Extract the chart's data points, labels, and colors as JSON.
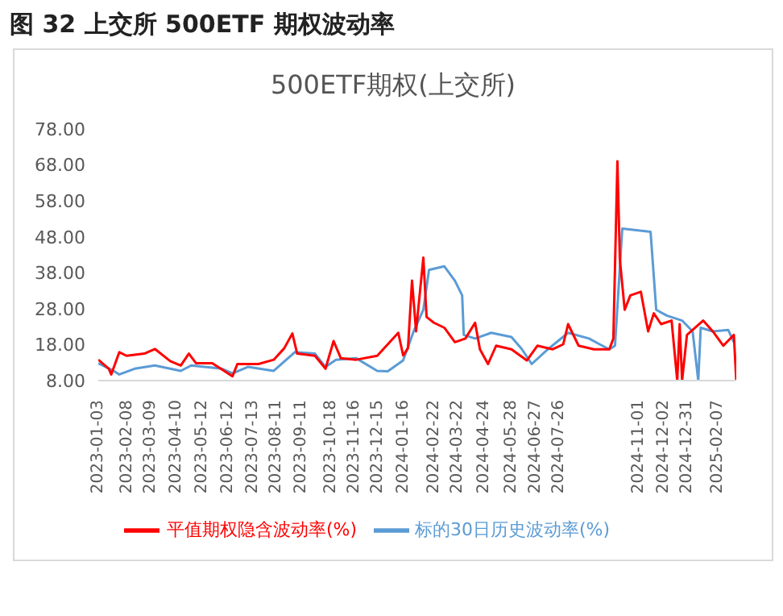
{
  "chart_data": {
    "type": "line",
    "title": "图 32  上交所 500ETF 期权波动率",
    "subtitle": "500ETF期权(上交所)",
    "xlim": [
      "2023-01-03",
      "2025-03-02"
    ],
    "xticks": [
      "2023-01-03",
      "2023-02-08",
      "2023-03-09",
      "2023-04-10",
      "2023-05-12",
      "2023-06-12",
      "2023-07-13",
      "2023-08-11",
      "2023-09-11",
      "2023-10-18",
      "2023-11-16",
      "2023-12-15",
      "2024-01-16",
      "2024-02-22",
      "2024-03-22",
      "2024-04-24",
      "2024-05-28",
      "2024-06-27",
      "2024-07-26",
      "2024-11-01",
      "2024-12-02",
      "2024-12-31",
      "2025-02-07"
    ],
    "ylim": [
      8,
      78
    ],
    "yticks": [
      {
        "value": 8,
        "label": "8.00"
      },
      {
        "value": 18,
        "label": "18.00"
      },
      {
        "value": 28,
        "label": "28.00"
      },
      {
        "value": 38,
        "label": "38.00"
      },
      {
        "value": 48,
        "label": "48.00"
      },
      {
        "value": 58,
        "label": "58.00"
      },
      {
        "value": 68,
        "label": "68.00"
      },
      {
        "value": 78,
        "label": "78.00"
      }
    ],
    "legend": "bottom",
    "series": [
      {
        "name": "标的30日历史波动率(%)",
        "color": "#5b9bd5",
        "x": [
          "2023-01-03",
          "2023-01-22",
          "2023-01-29",
          "2023-02-17",
          "2023-03-14",
          "2023-04-15",
          "2023-04-28",
          "2023-06-05",
          "2023-06-18",
          "2023-07-07",
          "2023-08-08",
          "2023-09-03",
          "2023-09-28",
          "2023-10-11",
          "2023-10-24",
          "2023-11-18",
          "2023-12-14",
          "2023-12-27",
          "2024-01-15",
          "2024-01-28",
          "2024-02-09",
          "2024-02-16",
          "2024-03-06",
          "2024-03-19",
          "2024-03-28",
          "2024-03-30",
          "2024-04-13",
          "2024-05-03",
          "2024-05-28",
          "2024-06-10",
          "2024-06-22",
          "2024-07-12",
          "2024-08-06",
          "2024-09-01",
          "2024-09-14",
          "2024-09-26",
          "2024-10-03",
          "2024-10-12",
          "2024-11-16",
          "2024-11-23",
          "2024-12-06",
          "2024-12-25",
          "2025-01-07",
          "2025-01-14",
          "2025-01-17",
          "2025-02-01",
          "2025-02-20",
          "2025-02-27"
        ],
        "values": [
          12.8,
          10.7,
          9.7,
          11.3,
          12.2,
          10.7,
          12.2,
          11.3,
          10,
          11.8,
          10.7,
          15.9,
          15.5,
          11.8,
          13.8,
          14.2,
          10.7,
          10.6,
          13.6,
          21.7,
          27.7,
          38.8,
          39.8,
          35.8,
          31.7,
          20.7,
          19.7,
          21.3,
          20.1,
          16.7,
          12.6,
          16.7,
          21.3,
          19.7,
          18.1,
          16.7,
          17.7,
          50.3,
          49.4,
          27.7,
          26.1,
          24.7,
          21.7,
          8,
          22.7,
          21.7,
          22.1,
          18.7
        ]
      },
      {
        "name": "平值期权隐含波动率(%)",
        "color": "#ff0000",
        "x": [
          "2023-01-03",
          "2023-01-16",
          "2023-01-19",
          "2023-01-29",
          "2023-02-07",
          "2023-03-01",
          "2023-03-14",
          "2023-04-02",
          "2023-04-15",
          "2023-04-25",
          "2023-05-04",
          "2023-05-24",
          "2023-06-18",
          "2023-06-24",
          "2023-07-20",
          "2023-08-08",
          "2023-08-21",
          "2023-08-31",
          "2023-09-06",
          "2023-09-28",
          "2023-10-11",
          "2023-10-21",
          "2023-10-30",
          "2023-11-18",
          "2023-12-14",
          "2024-01-09",
          "2024-01-15",
          "2024-01-21",
          "2024-01-26",
          "2024-01-31",
          "2024-02-09",
          "2024-02-13",
          "2024-02-22",
          "2024-03-06",
          "2024-03-19",
          "2024-04-01",
          "2024-04-13",
          "2024-04-19",
          "2024-04-29",
          "2024-05-09",
          "2024-05-28",
          "2024-06-16",
          "2024-06-29",
          "2024-07-18",
          "2024-07-31",
          "2024-08-06",
          "2024-08-19",
          "2024-09-07",
          "2024-09-26",
          "2024-10-01",
          "2024-10-06",
          "2024-10-09",
          "2024-10-15",
          "2024-10-22",
          "2024-11-04",
          "2024-11-13",
          "2024-11-20",
          "2024-11-29",
          "2024-12-12",
          "2024-12-19",
          "2024-12-22",
          "2024-12-25",
          "2024-12-31",
          "2025-01-20",
          "2025-02-01",
          "2025-02-14",
          "2025-02-27",
          "2025-03-02"
        ],
        "values": [
          13.8,
          11.3,
          9.7,
          15.9,
          14.9,
          15.5,
          16.8,
          13.4,
          12.2,
          15.5,
          12.8,
          12.8,
          9.2,
          12.6,
          12.6,
          13.8,
          17,
          21.1,
          15.5,
          14.9,
          11.3,
          19,
          14.2,
          13.8,
          14.9,
          21.3,
          15,
          17,
          35.8,
          21.7,
          42.2,
          25.7,
          24.1,
          22.7,
          18.7,
          19.7,
          24.1,
          16.7,
          12.6,
          17.7,
          16.7,
          13.6,
          17.7,
          16.7,
          18.1,
          23.7,
          17.7,
          16.7,
          16.7,
          19.7,
          69,
          41.8,
          27.7,
          31.7,
          32.7,
          21.7,
          26.7,
          23.7,
          24.7,
          8,
          23.7,
          8,
          20.7,
          24.7,
          21.7,
          17.7,
          20.7,
          8
        ]
      }
    ]
  }
}
